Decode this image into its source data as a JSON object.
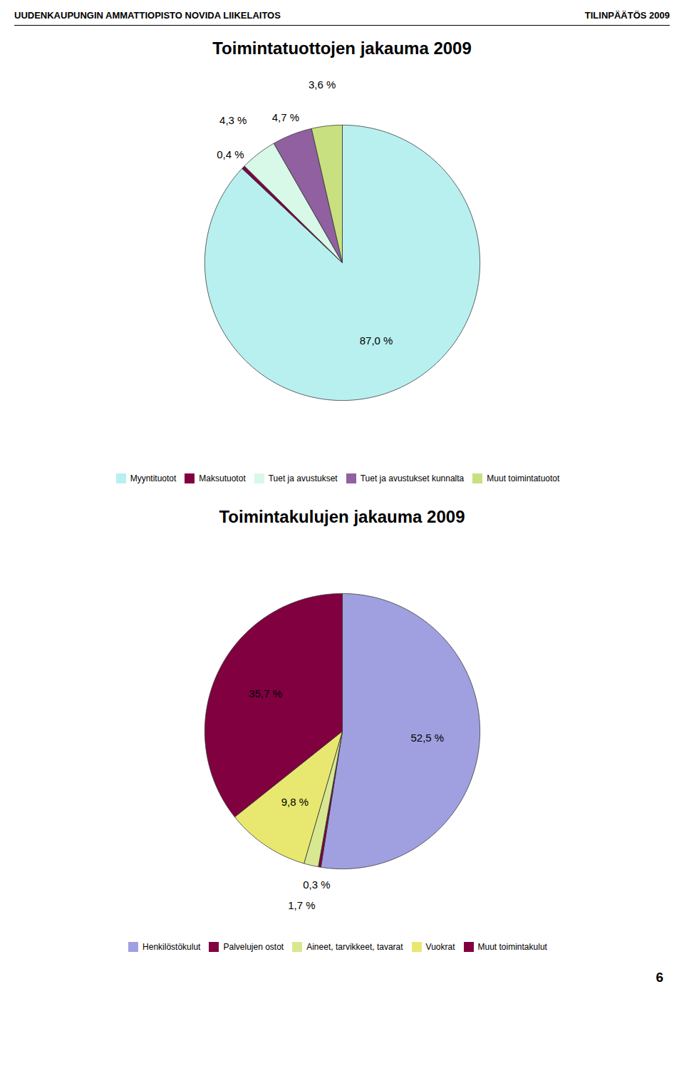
{
  "annotations": [
    "UUDENKAUPUNGIN AMMATTIOPISTO NOVIDA LIIKELAITOS",
    "TILINPÄÄTÖS 2009",
    "6"
  ],
  "chart_data": [
    {
      "type": "pie",
      "title": "Toimintatuottojen jakauma 2009",
      "categories": [
        "Myyntituotot",
        "Maksutuotot",
        "Tuet ja avustukset",
        "Tuet ja avustukset kunnalta",
        "Muut toimintatuotot"
      ],
      "values": [
        87.0,
        0.4,
        4.3,
        4.7,
        3.6
      ],
      "value_labels": [
        "87,0 %",
        "0,4 %",
        "4,3 %",
        "4,7 %",
        "3,6 %"
      ],
      "colors": [
        "#b8f0f0",
        "#800040",
        "#d8f8e8",
        "#9060a0",
        "#c8e080"
      ],
      "data_labels": true,
      "legend": "bottom"
    },
    {
      "type": "pie",
      "title": "Toimintakulujen jakauma 2009",
      "categories": [
        "Henkilöstökulut",
        "Palvelujen ostot",
        "Aineet, tarvikkeet, tavarat",
        "Vuokrat",
        "Muut toimintakulut"
      ],
      "values": [
        52.5,
        0.3,
        1.7,
        9.8,
        35.7
      ],
      "value_labels": [
        "52,5 %",
        "0,3 %",
        "1,7 %",
        "9,8 %",
        "35,7 %"
      ],
      "colors": [
        "#a0a0e0",
        "#800040",
        "#d8e890",
        "#e8e870",
        "#800040"
      ],
      "data_labels": true,
      "legend": "bottom"
    }
  ]
}
